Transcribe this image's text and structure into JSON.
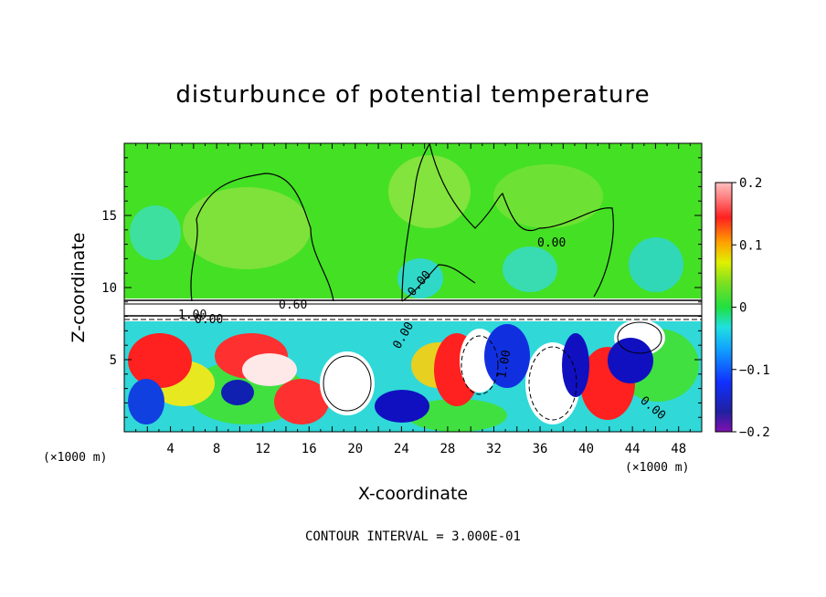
{
  "chart_data": {
    "type": "heatmap",
    "title": "disturbunce of potential temperature",
    "xlabel": "X-coordinate",
    "ylabel": "Z-coordinate",
    "x_unit": "(×1000 m)",
    "z_unit": "(×1000 m)",
    "xlim": [
      0,
      50
    ],
    "ylim": [
      0,
      20
    ],
    "x_ticks": [
      4,
      8,
      12,
      16,
      20,
      24,
      28,
      32,
      36,
      40,
      44,
      48
    ],
    "y_ticks": [
      5,
      10,
      15
    ],
    "colorbar": {
      "range": [
        -0.2,
        0.2
      ],
      "tick_labels": [
        "0.2",
        "0.1",
        "0",
        "−0.1",
        "−0.2"
      ],
      "tick_values": [
        0.2,
        0.1,
        0,
        -0.1,
        -0.2
      ]
    },
    "contour_labels": [
      "0.60",
      "1.00",
      "0.00",
      "0.00",
      "0.00",
      "0.00",
      "1.00",
      "0.00"
    ],
    "contour_interval_text": "CONTOUR INTERVAL = 3.000E-01",
    "colors": {
      "upper_layer": "#40e020",
      "dark_blue": "#1010c0",
      "red": "#ff1010",
      "band": "#ffffff"
    }
  }
}
